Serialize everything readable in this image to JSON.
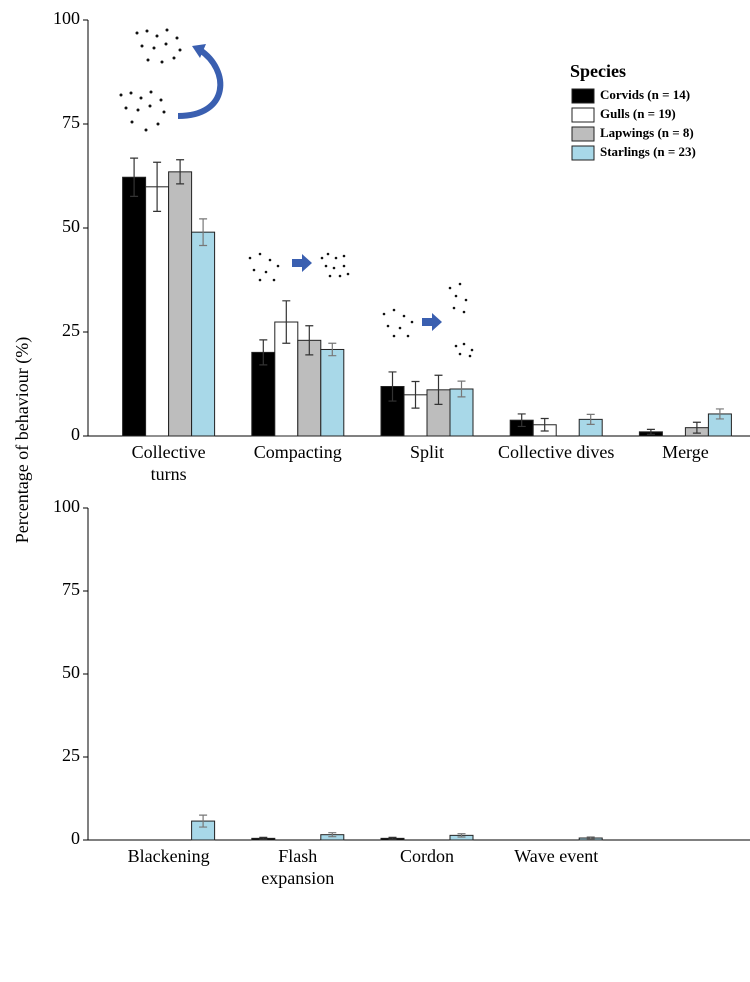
{
  "chart_data": [
    {
      "type": "bar",
      "ylabel": "Percentage of behaviour (%)",
      "legend_title": "Species",
      "legend": "upper right",
      "categories": [
        "Collective\nturns",
        "Compacting",
        "Split",
        "Collective dives",
        "Merge"
      ],
      "series": [
        {
          "name": "Corvids (n = 14)",
          "color": "#000000",
          "values": [
            62.2,
            20.1,
            11.9,
            3.8,
            1.0
          ],
          "errors": [
            4.6,
            3.0,
            3.5,
            1.5,
            0.6
          ]
        },
        {
          "name": "Gulls (n = 19)",
          "color": "#ffffff",
          "values": [
            59.9,
            27.4,
            9.9,
            2.7,
            null
          ],
          "errors": [
            5.9,
            5.1,
            3.2,
            1.5,
            null
          ]
        },
        {
          "name": "Lapwings (n = 8)",
          "color": "#bdbdbd",
          "values": [
            63.5,
            23.0,
            11.1,
            null,
            2.0
          ],
          "errors": [
            2.9,
            3.5,
            3.5,
            null,
            1.3
          ]
        },
        {
          "name": "Starlings (n = 23)",
          "color": "#a8d8e8",
          "values": [
            49.0,
            20.8,
            11.3,
            4.0,
            5.3
          ],
          "errors": [
            3.2,
            1.5,
            1.9,
            1.2,
            1.2
          ]
        }
      ],
      "ylim": [
        0,
        100
      ],
      "yticks": [
        0,
        25,
        50,
        75,
        100
      ]
    },
    {
      "type": "bar",
      "categories": [
        "Blackening",
        "Flash\nexpansion",
        "Cordon",
        "Wave event",
        null
      ],
      "series": [
        {
          "color": "#000000",
          "values": [
            null,
            0.5,
            0.5,
            null,
            null
          ],
          "errors": [
            null,
            0.3,
            0.3,
            null,
            null
          ]
        },
        {
          "color": "#ffffff",
          "values": [
            null,
            null,
            null,
            null,
            null
          ],
          "errors": [
            null,
            null,
            null,
            null,
            null
          ]
        },
        {
          "color": "#bdbdbd",
          "values": [
            null,
            null,
            null,
            null,
            null
          ],
          "errors": [
            null,
            null,
            null,
            null,
            null
          ]
        },
        {
          "color": "#a8d8e8",
          "values": [
            5.7,
            1.6,
            1.4,
            0.6,
            null
          ],
          "errors": [
            1.8,
            0.6,
            0.5,
            0.3,
            null
          ]
        }
      ],
      "ylim": [
        0,
        100
      ],
      "yticks": [
        0,
        25,
        50,
        75,
        100
      ]
    }
  ]
}
